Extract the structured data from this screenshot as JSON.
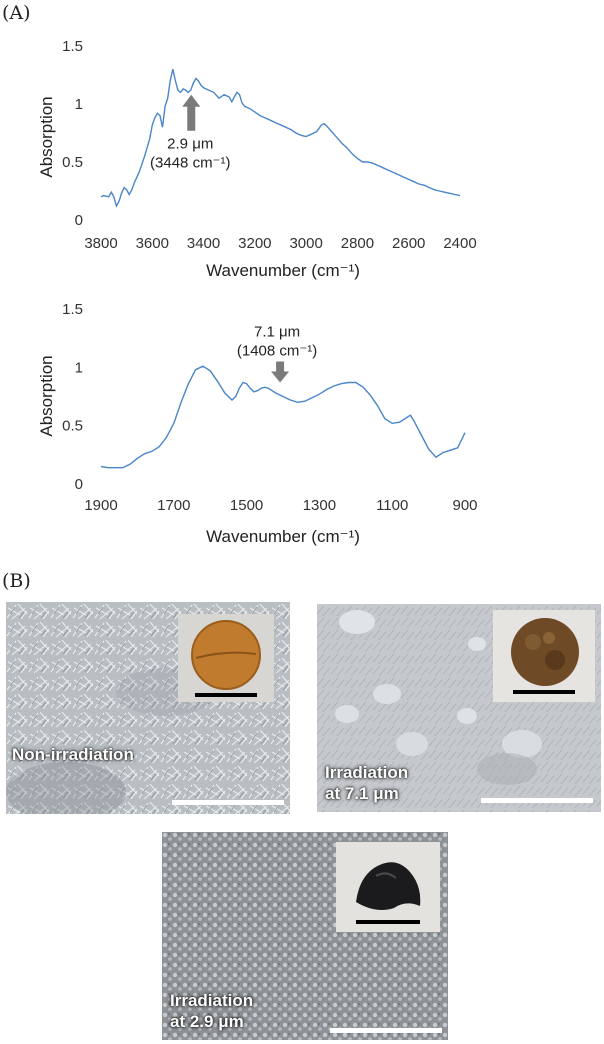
{
  "panel_a_label": "(A)",
  "panel_b_label": "(B)",
  "colors": {
    "line": "#4a86c8",
    "arrow": "#7a7a7a",
    "scale_bar": "#ffffff",
    "inset_bar": "#000000"
  },
  "chart_data": [
    {
      "type": "line",
      "xlabel": "Wavenumber (cm⁻¹)",
      "ylabel": "Absorption",
      "xlim": [
        3800,
        2400
      ],
      "ylim": [
        0,
        1.5
      ],
      "x_ticks": [
        3800,
        3600,
        3400,
        3200,
        3000,
        2800,
        2600,
        2400
      ],
      "y_ticks": [
        0,
        0.5,
        1,
        1.5
      ],
      "y_tick_labels": [
        "0",
        "0.5",
        "1",
        "1.5"
      ],
      "x": [
        3800,
        3790,
        3770,
        3760,
        3750,
        3740,
        3730,
        3720,
        3710,
        3700,
        3690,
        3680,
        3670,
        3650,
        3630,
        3610,
        3600,
        3590,
        3580,
        3570,
        3560,
        3550,
        3540,
        3530,
        3520,
        3510,
        3500,
        3490,
        3480,
        3470,
        3460,
        3450,
        3440,
        3430,
        3420,
        3410,
        3400,
        3380,
        3360,
        3340,
        3320,
        3300,
        3290,
        3280,
        3270,
        3260,
        3250,
        3240,
        3220,
        3200,
        3180,
        3160,
        3140,
        3120,
        3100,
        3080,
        3060,
        3040,
        3020,
        3000,
        2980,
        2960,
        2950,
        2940,
        2930,
        2920,
        2900,
        2880,
        2860,
        2840,
        2820,
        2800,
        2780,
        2760,
        2740,
        2720,
        2700,
        2680,
        2660,
        2640,
        2620,
        2600,
        2580,
        2560,
        2540,
        2520,
        2500,
        2480,
        2460,
        2440,
        2420,
        2400
      ],
      "series": [
        {
          "values": [
            0.2,
            0.21,
            0.2,
            0.24,
            0.2,
            0.12,
            0.16,
            0.23,
            0.28,
            0.26,
            0.22,
            0.26,
            0.32,
            0.42,
            0.55,
            0.7,
            0.82,
            0.88,
            0.92,
            0.9,
            0.8,
            0.98,
            1.05,
            1.2,
            1.3,
            1.2,
            1.12,
            1.1,
            1.13,
            1.12,
            1.1,
            1.12,
            1.18,
            1.22,
            1.2,
            1.16,
            1.14,
            1.12,
            1.1,
            1.05,
            1.08,
            1.06,
            1.02,
            1.06,
            1.1,
            1.08,
            1.01,
            0.98,
            0.96,
            0.93,
            0.9,
            0.88,
            0.86,
            0.84,
            0.82,
            0.8,
            0.78,
            0.75,
            0.73,
            0.72,
            0.74,
            0.76,
            0.79,
            0.82,
            0.83,
            0.81,
            0.76,
            0.71,
            0.66,
            0.62,
            0.57,
            0.53,
            0.5,
            0.5,
            0.49,
            0.47,
            0.45,
            0.43,
            0.41,
            0.39,
            0.37,
            0.35,
            0.33,
            0.31,
            0.3,
            0.28,
            0.26,
            0.25,
            0.24,
            0.23,
            0.22,
            0.21
          ]
        }
      ],
      "annotations": [
        {
          "x": 3448,
          "lines": [
            "2.9 μm",
            "(3448 cm⁻¹)"
          ],
          "direction": "up"
        }
      ]
    },
    {
      "type": "line",
      "xlabel": "Wavenumber (cm⁻¹)",
      "ylabel": "Absorption",
      "xlim": [
        1900,
        900
      ],
      "ylim": [
        0,
        1.5
      ],
      "x_ticks": [
        1900,
        1700,
        1500,
        1300,
        1100,
        900
      ],
      "y_ticks": [
        0,
        0.5,
        1,
        1.5
      ],
      "y_tick_labels": [
        "0",
        "0.5",
        "1",
        "1.5"
      ],
      "x": [
        1900,
        1880,
        1860,
        1840,
        1820,
        1800,
        1780,
        1760,
        1740,
        1720,
        1700,
        1680,
        1660,
        1640,
        1620,
        1600,
        1580,
        1560,
        1540,
        1530,
        1520,
        1510,
        1500,
        1490,
        1480,
        1470,
        1460,
        1450,
        1440,
        1430,
        1420,
        1400,
        1380,
        1360,
        1340,
        1320,
        1300,
        1280,
        1260,
        1240,
        1220,
        1200,
        1180,
        1160,
        1140,
        1120,
        1100,
        1080,
        1060,
        1050,
        1040,
        1020,
        1000,
        980,
        960,
        940,
        920,
        900
      ],
      "series": [
        {
          "values": [
            0.15,
            0.14,
            0.14,
            0.14,
            0.17,
            0.22,
            0.26,
            0.28,
            0.32,
            0.4,
            0.52,
            0.7,
            0.86,
            0.98,
            1.01,
            0.97,
            0.88,
            0.78,
            0.72,
            0.75,
            0.82,
            0.87,
            0.86,
            0.82,
            0.79,
            0.8,
            0.82,
            0.83,
            0.82,
            0.8,
            0.78,
            0.75,
            0.72,
            0.7,
            0.71,
            0.74,
            0.77,
            0.81,
            0.84,
            0.86,
            0.87,
            0.87,
            0.83,
            0.76,
            0.67,
            0.56,
            0.52,
            0.53,
            0.57,
            0.59,
            0.54,
            0.42,
            0.3,
            0.23,
            0.27,
            0.29,
            0.31,
            0.44
          ]
        }
      ],
      "annotations": [
        {
          "x": 1408,
          "lines": [
            "7.1 μm",
            "(1408 cm⁻¹)"
          ],
          "direction": "down"
        }
      ]
    }
  ],
  "sem_images": [
    {
      "label_lines": [
        "Non-irradiation"
      ],
      "texture": "needles",
      "inset": "pellet"
    },
    {
      "label_lines": [
        "Irradiation",
        "at 7.1 μm"
      ],
      "texture": "particles",
      "inset": "powder"
    },
    {
      "label_lines": [
        "Irradiation",
        "at 2.9 μm"
      ],
      "texture": "granular",
      "inset": "black-fragment"
    }
  ]
}
